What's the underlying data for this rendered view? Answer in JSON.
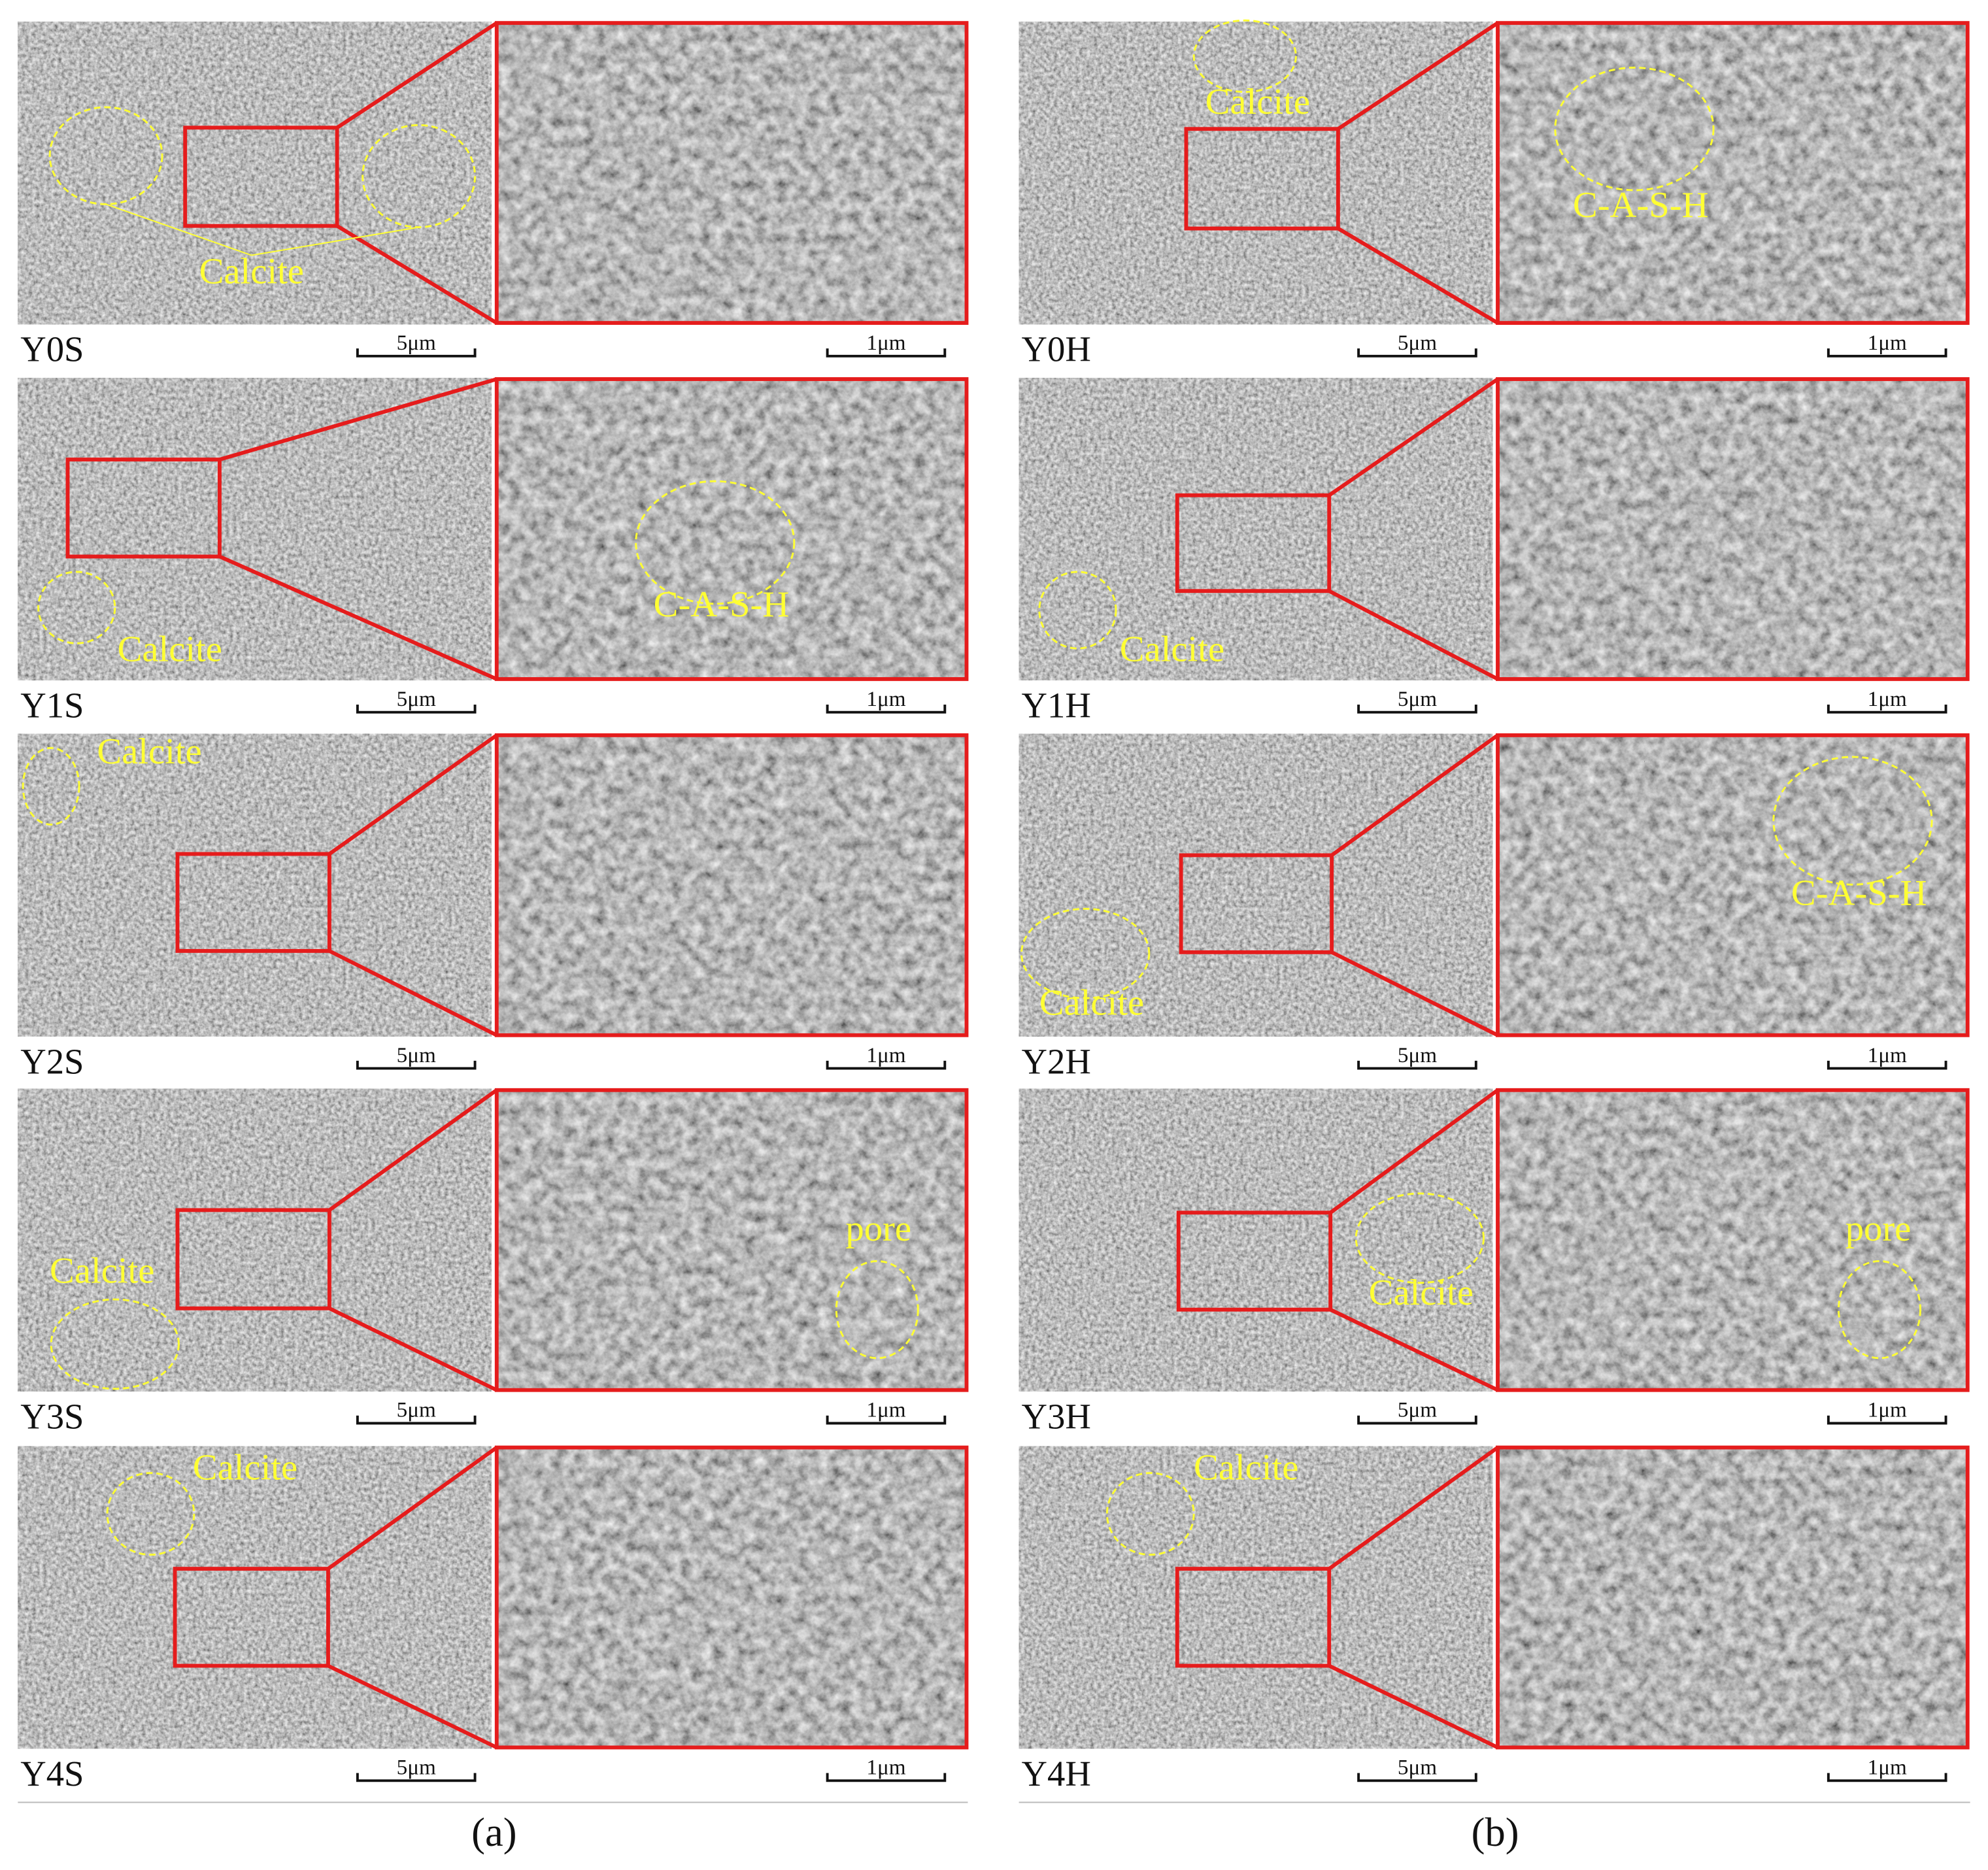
{
  "panels": [
    {
      "caption": "(a)",
      "rows": [
        {
          "label": "Y0S",
          "scale_bars": [
            "5μm",
            "1μm"
          ],
          "annotations": [
            "Calcite"
          ]
        },
        {
          "label": "Y1S",
          "scale_bars": [
            "5μm",
            "1μm"
          ],
          "annotations": [
            "Calcite",
            "C-A-S-H"
          ]
        },
        {
          "label": "Y2S",
          "scale_bars": [
            "5μm",
            "1μm"
          ],
          "annotations": [
            "Calcite"
          ]
        },
        {
          "label": "Y3S",
          "scale_bars": [
            "5μm",
            "1μm"
          ],
          "annotations": [
            "Calcite",
            "pore"
          ]
        },
        {
          "label": "Y4S",
          "scale_bars": [
            "5μm",
            "1μm"
          ],
          "annotations": [
            "Calcite"
          ]
        }
      ]
    },
    {
      "caption": "(b)",
      "rows": [
        {
          "label": "Y0H",
          "scale_bars": [
            "5μm",
            "1μm"
          ],
          "annotations": [
            "Calcite",
            "C-A-S-H"
          ]
        },
        {
          "label": "Y1H",
          "scale_bars": [
            "5μm",
            "1μm"
          ],
          "annotations": [
            "Calcite"
          ]
        },
        {
          "label": "Y2H",
          "scale_bars": [
            "5μm",
            "1μm"
          ],
          "annotations": [
            "Calcite",
            "C-A-S-H"
          ]
        },
        {
          "label": "Y3H",
          "scale_bars": [
            "5μm",
            "1μm"
          ],
          "annotations": [
            "Calcite",
            "pore"
          ]
        },
        {
          "label": "Y4H",
          "scale_bars": [
            "5μm",
            "1μm"
          ],
          "annotations": [
            "Calcite"
          ]
        }
      ]
    }
  ]
}
